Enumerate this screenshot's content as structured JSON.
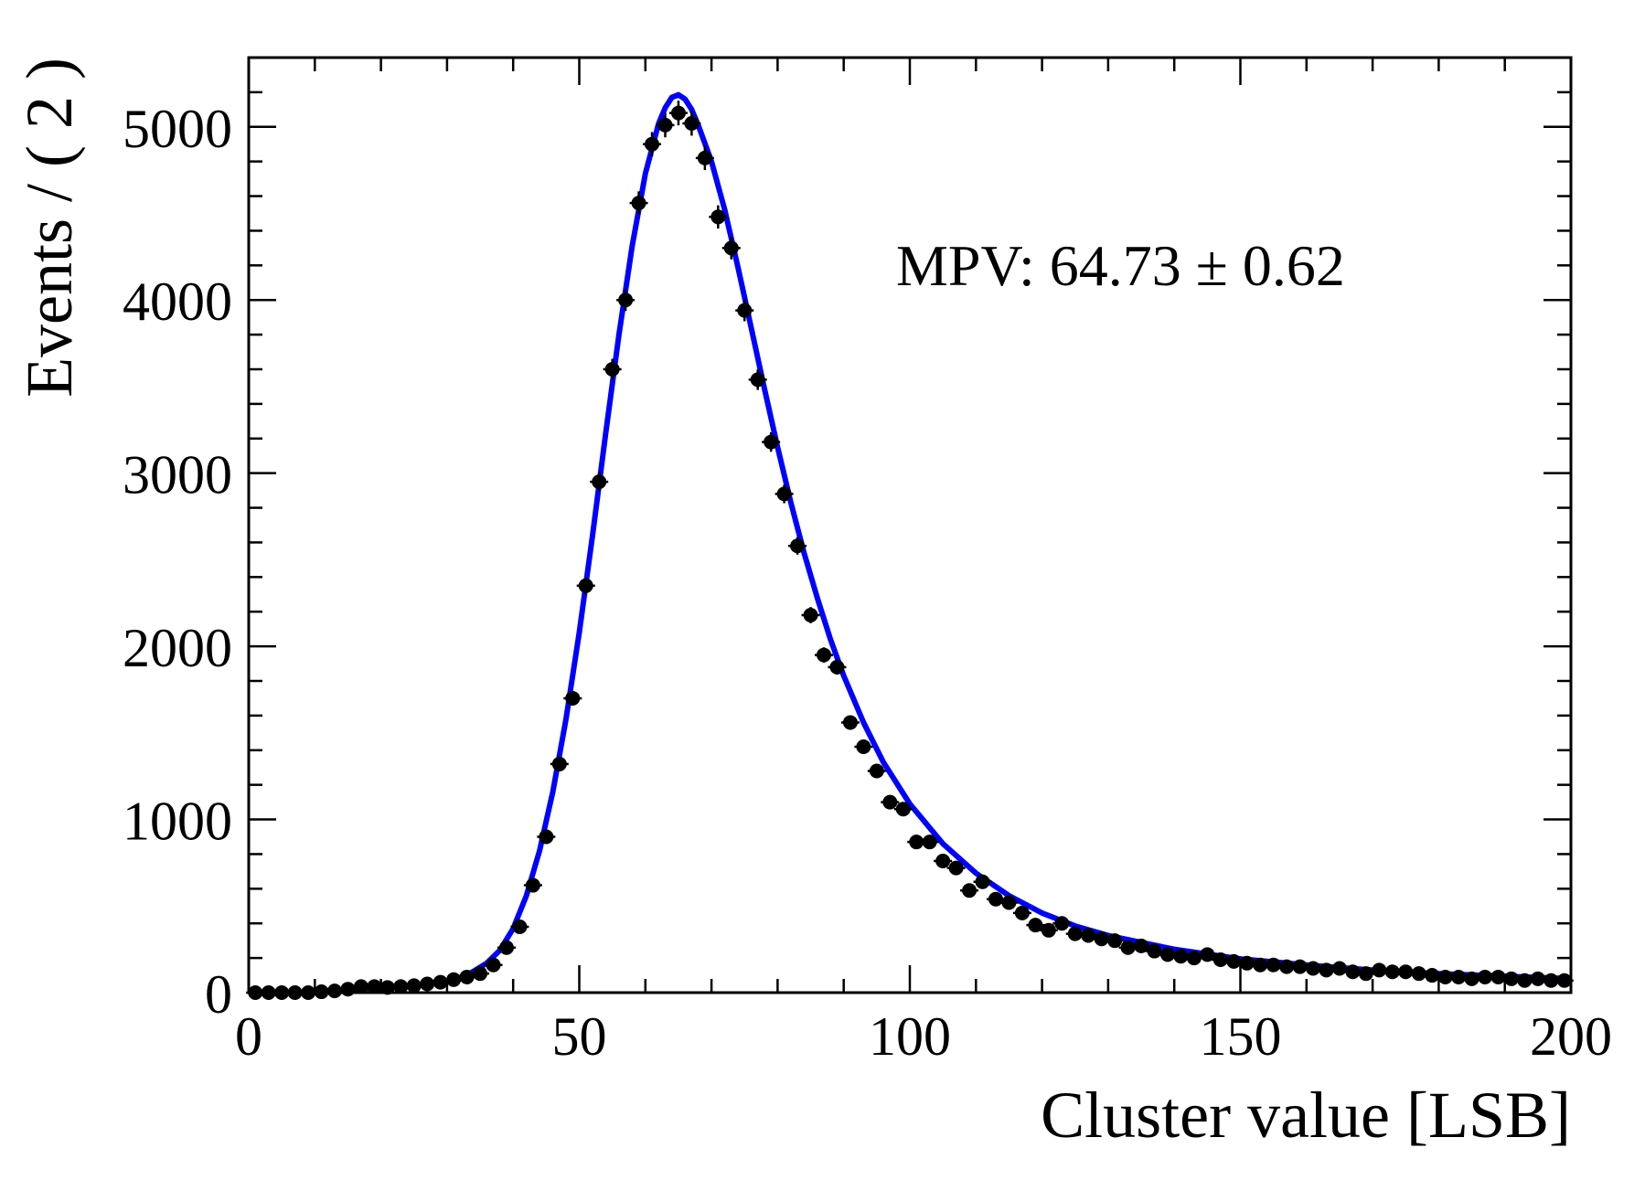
{
  "chart_data": {
    "type": "scatter",
    "xlabel": "Cluster value [LSB]",
    "ylabel": "Events / ( 2 )",
    "annotation": "MPV: 64.73 ± 0.62",
    "xlim": [
      0,
      200
    ],
    "ylim": [
      0,
      5400
    ],
    "x_ticks": [
      0,
      50,
      100,
      150,
      200
    ],
    "x_tick_labels": [
      "0",
      "50",
      "100",
      "150",
      "200"
    ],
    "y_ticks": [
      0,
      1000,
      2000,
      3000,
      4000,
      5000
    ],
    "y_tick_labels": [
      "0",
      "1000",
      "2000",
      "3000",
      "4000",
      "5000"
    ],
    "grid": false,
    "series": [
      {
        "kind": "points_with_errors",
        "color": "#000000",
        "x": [
          1,
          3,
          5,
          7,
          9,
          11,
          13,
          15,
          17,
          19,
          21,
          23,
          25,
          27,
          29,
          31,
          33,
          35,
          37,
          39,
          41,
          43,
          45,
          47,
          49,
          51,
          53,
          55,
          57,
          59,
          61,
          63,
          65,
          67,
          69,
          71,
          73,
          75,
          77,
          79,
          81,
          83,
          85,
          87,
          89,
          91,
          93,
          95,
          97,
          99,
          101,
          103,
          105,
          107,
          109,
          111,
          113,
          115,
          117,
          119,
          121,
          123,
          125,
          127,
          129,
          131,
          133,
          135,
          137,
          139,
          141,
          143,
          145,
          147,
          149,
          151,
          153,
          155,
          157,
          159,
          161,
          163,
          165,
          167,
          169,
          171,
          173,
          175,
          177,
          179,
          181,
          183,
          185,
          187,
          189,
          191,
          193,
          195,
          197,
          199
        ],
        "y": [
          0,
          0,
          0,
          0,
          0,
          5,
          10,
          20,
          35,
          35,
          30,
          35,
          40,
          50,
          60,
          75,
          90,
          110,
          160,
          260,
          380,
          620,
          900,
          1320,
          1700,
          2350,
          2950,
          3600,
          4000,
          4560,
          4900,
          5010,
          5080,
          5020,
          4820,
          4480,
          4300,
          3940,
          3540,
          3180,
          2880,
          2580,
          2180,
          1950,
          1880,
          1560,
          1420,
          1280,
          1100,
          1060,
          870,
          870,
          760,
          720,
          590,
          640,
          540,
          520,
          460,
          390,
          360,
          400,
          340,
          330,
          310,
          300,
          260,
          270,
          240,
          220,
          210,
          200,
          220,
          190,
          180,
          170,
          160,
          160,
          150,
          150,
          140,
          130,
          140,
          120,
          110,
          130,
          120,
          120,
          110,
          100,
          90,
          90,
          80,
          90,
          90,
          80,
          70,
          80,
          70,
          70
        ]
      },
      {
        "kind": "fit_curve",
        "color": "#0000ff",
        "x": [
          10,
          15,
          20,
          25,
          30,
          33,
          36,
          38,
          40,
          42,
          44,
          46,
          48,
          50,
          52,
          54,
          56,
          58,
          60,
          62,
          63,
          64,
          65,
          66,
          67,
          68,
          70,
          72,
          74,
          76,
          78,
          80,
          82,
          84,
          86,
          88,
          90,
          93,
          96,
          100,
          105,
          110,
          115,
          120,
          125,
          130,
          140,
          150,
          160,
          170,
          180,
          190,
          200
        ],
        "y": [
          0,
          15,
          30,
          40,
          65,
          100,
          170,
          245,
          370,
          560,
          820,
          1160,
          1580,
          2080,
          2640,
          3230,
          3800,
          4310,
          4730,
          5020,
          5110,
          5170,
          5185,
          5160,
          5100,
          5010,
          4800,
          4520,
          4190,
          3840,
          3490,
          3150,
          2830,
          2540,
          2280,
          2040,
          1830,
          1560,
          1330,
          1090,
          860,
          690,
          560,
          460,
          385,
          330,
          250,
          195,
          160,
          130,
          110,
          95,
          80
        ]
      }
    ]
  }
}
